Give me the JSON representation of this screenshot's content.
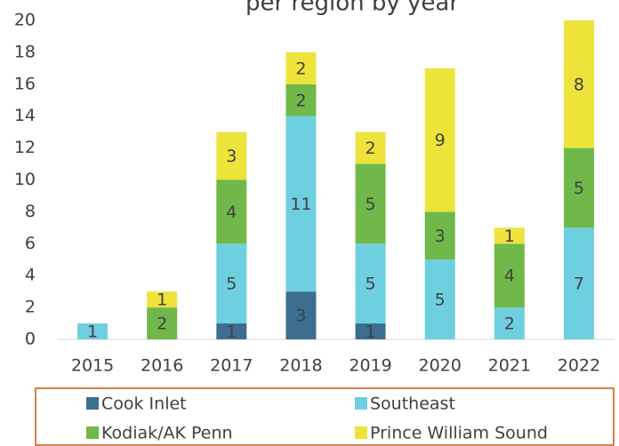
{
  "chart_data": {
    "type": "stacked_bar",
    "title": "per region by year",
    "categories": [
      "2015",
      "2016",
      "2017",
      "2018",
      "2019",
      "2020",
      "2021",
      "2022"
    ],
    "series": [
      {
        "name": "Cook Inlet",
        "color": "#3b6e8f",
        "values": [
          0,
          0,
          1,
          3,
          1,
          0,
          0,
          0
        ]
      },
      {
        "name": "Southeast",
        "color": "#6ecfe0",
        "values": [
          1,
          0,
          5,
          11,
          5,
          5,
          2,
          7
        ]
      },
      {
        "name": "Kodiak/AK Penn",
        "color": "#70b84a",
        "values": [
          0,
          2,
          4,
          2,
          5,
          3,
          4,
          5
        ]
      },
      {
        "name": "Prince William Sound",
        "color": "#ede33a",
        "values": [
          0,
          1,
          3,
          2,
          2,
          9,
          1,
          8
        ]
      }
    ],
    "ylim": [
      0,
      20
    ],
    "yticks": [
      0,
      2,
      4,
      6,
      8,
      10,
      12,
      14,
      16,
      18,
      20
    ],
    "grid": false,
    "legend": "bottom"
  }
}
